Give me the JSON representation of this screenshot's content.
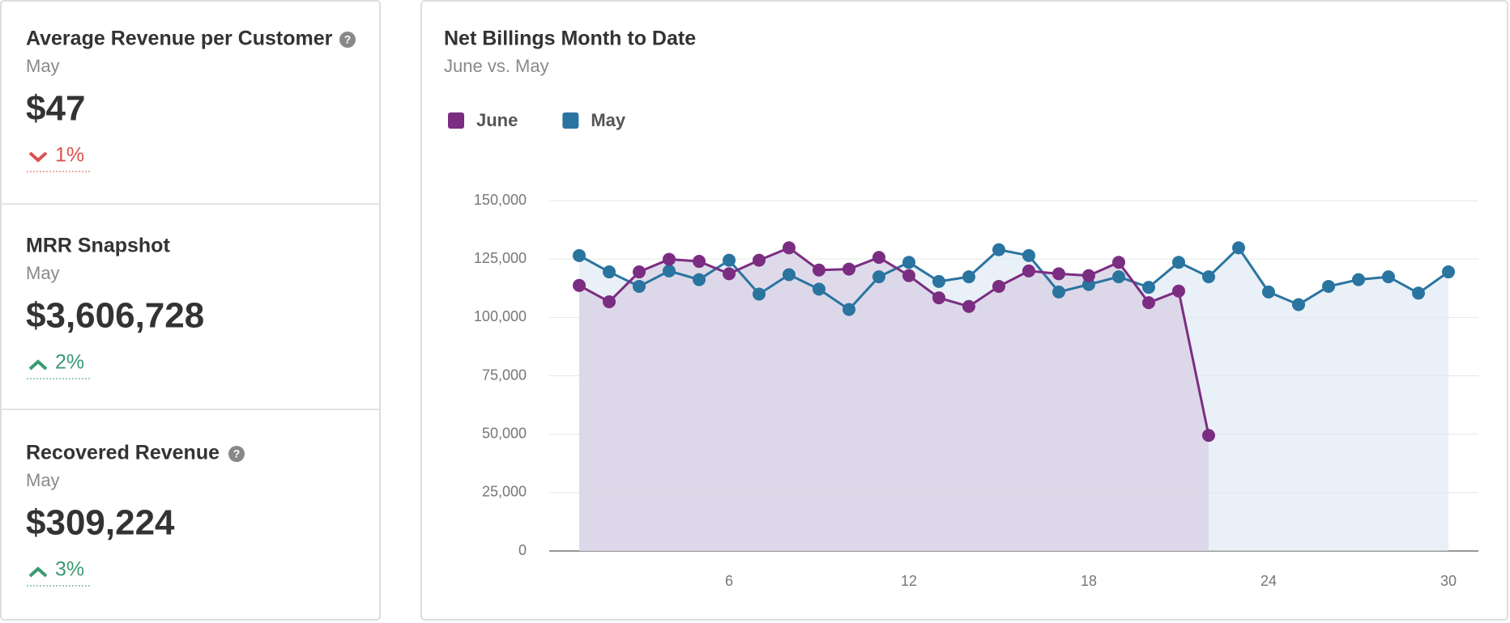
{
  "cards": [
    {
      "title": "Average Revenue per Customer",
      "period": "May",
      "value": "$47",
      "change": "1%"
    },
    {
      "title": "MRR Snapshot",
      "period": "May",
      "value": "$3,606,728",
      "change": "2%"
    },
    {
      "title": "Recovered Revenue",
      "period": "May",
      "value": "$309,224",
      "change": "3%"
    }
  ],
  "chart_data": {
    "type": "line",
    "title": "Net Billings Month to Date",
    "subtitle": "June vs. May",
    "series": [
      {
        "name": "June",
        "color": "#7b2d82",
        "x": [
          1,
          2,
          3,
          4,
          5,
          6,
          7,
          8,
          9,
          10,
          11,
          12,
          13,
          14,
          15,
          16,
          17,
          18,
          19,
          20,
          21,
          22
        ],
        "values": [
          113700,
          106700,
          119500,
          124900,
          124000,
          118700,
          124500,
          129800,
          120300,
          120700,
          125700,
          117900,
          108400,
          104700,
          113300,
          119900,
          118700,
          117900,
          123600,
          106300,
          111300,
          49500
        ]
      },
      {
        "name": "May",
        "color": "#2a74a0",
        "x": [
          1,
          2,
          3,
          4,
          5,
          6,
          7,
          8,
          9,
          10,
          11,
          12,
          13,
          14,
          15,
          16,
          17,
          18,
          19,
          20,
          21,
          22,
          23,
          24,
          25,
          26,
          27,
          28,
          29,
          30
        ],
        "values": [
          126500,
          119500,
          113300,
          119900,
          116200,
          124500,
          110000,
          118300,
          112100,
          103400,
          117400,
          123600,
          115400,
          117400,
          129000,
          126500,
          110900,
          114100,
          117400,
          112900,
          123600,
          117400,
          129800,
          110900,
          105500,
          113300,
          116200,
          117400,
          110400,
          119500
        ]
      }
    ],
    "xlim": [
      0,
      31
    ],
    "xticks": [
      6,
      12,
      18,
      24,
      30
    ],
    "ylim": [
      0,
      150000
    ],
    "yticks": [
      0,
      {
        "value": 25000,
        "label": "25,000"
      },
      {
        "value": 50000,
        "label": "50,000"
      },
      {
        "value": 75000,
        "label": "75,000"
      },
      {
        "value": 100000,
        "label": "100,000"
      },
      {
        "value": 125000,
        "label": "125,000"
      },
      {
        "value": 150000,
        "label": "150,000"
      }
    ],
    "grid": true
  }
}
